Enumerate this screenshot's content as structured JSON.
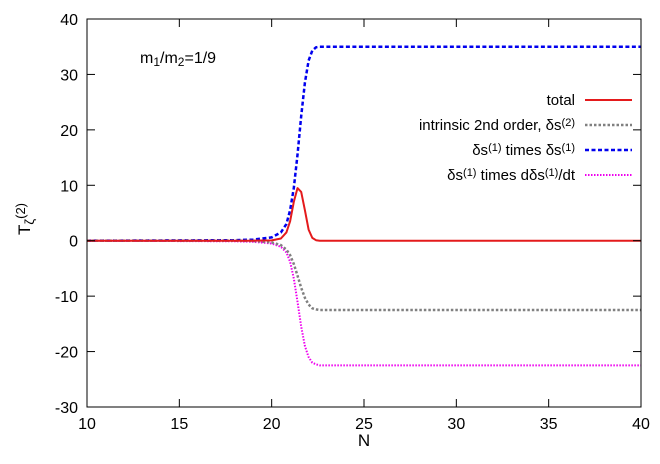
{
  "chart_data": {
    "type": "line",
    "annotation": {
      "parts": [
        {
          "t": "m",
          "s": "normal"
        },
        {
          "t": "1",
          "s": "sub"
        },
        {
          "t": "/m",
          "s": "normal"
        },
        {
          "t": "2",
          "s": "sub"
        },
        {
          "t": "=1/9",
          "s": "normal"
        }
      ]
    },
    "xlabel": "N",
    "ylabel": {
      "parts": [
        {
          "t": "T",
          "s": "normal"
        },
        {
          "t": "ζ",
          "s": "sub"
        },
        {
          "t": "(2)",
          "s": "sup"
        }
      ]
    },
    "xlim": [
      10,
      40
    ],
    "ylim": [
      -30,
      40
    ],
    "xticks": [
      10,
      15,
      20,
      25,
      30,
      35,
      40
    ],
    "yticks": [
      -30,
      -20,
      -10,
      0,
      10,
      20,
      30,
      40
    ],
    "grid": false,
    "legend_position": "top-right",
    "x": [
      10,
      18,
      19,
      20,
      20.5,
      20.8,
      21,
      21.2,
      21.4,
      21.6,
      21.8,
      22,
      22.2,
      22.4,
      22.6,
      23,
      25,
      30,
      35,
      40
    ],
    "series": [
      {
        "name": "total",
        "label_parts": [
          {
            "t": "total",
            "s": "normal"
          }
        ],
        "color": "#e41a1c",
        "dash": "solid",
        "values": [
          0,
          0,
          0,
          0.05,
          0.4,
          1.5,
          3.5,
          7,
          9.5,
          8.8,
          5.5,
          2,
          0.5,
          0.1,
          0,
          0,
          0,
          0,
          0,
          0
        ]
      },
      {
        "name": "intrinsic 2nd order, δs(2)",
        "label_parts": [
          {
            "t": "intrinsic 2nd order, δs",
            "s": "normal"
          },
          {
            "t": "(2)",
            "s": "sup"
          }
        ],
        "color": "#808080",
        "dash": "gray-dot",
        "values": [
          0,
          0,
          -0.05,
          -0.3,
          -0.8,
          -1.6,
          -2.6,
          -4.2,
          -6.3,
          -8.5,
          -10.3,
          -11.5,
          -12.2,
          -12.4,
          -12.5,
          -12.5,
          -12.5,
          -12.5,
          -12.5,
          -12.5
        ]
      },
      {
        "name": "δs(1) times δs(1)",
        "label_parts": [
          {
            "t": "δs",
            "s": "normal"
          },
          {
            "t": "(1)",
            "s": "sup"
          },
          {
            "t": " times δs",
            "s": "normal"
          },
          {
            "t": "(1)",
            "s": "sup"
          }
        ],
        "color": "#0000ee",
        "dash": "blue-dash",
        "values": [
          0,
          0.1,
          0.2,
          0.6,
          1.5,
          3,
          5.5,
          9.5,
          15.5,
          22.5,
          28.5,
          32.5,
          34.3,
          34.9,
          35,
          35,
          35,
          35,
          35,
          35
        ]
      },
      {
        "name": "δs(1) times dδs(1)/dt",
        "label_parts": [
          {
            "t": "δs",
            "s": "normal"
          },
          {
            "t": "(1)",
            "s": "sup"
          },
          {
            "t": " times dδs",
            "s": "normal"
          },
          {
            "t": "(1)",
            "s": "sup"
          },
          {
            "t": "/dt",
            "s": "normal"
          }
        ],
        "color": "#ee00ee",
        "dash": "magenta-dot",
        "values": [
          0,
          -0.1,
          -0.2,
          -0.5,
          -1.1,
          -2.1,
          -3.8,
          -6.8,
          -11,
          -15.5,
          -19,
          -21,
          -22,
          -22.3,
          -22.5,
          -22.5,
          -22.5,
          -22.5,
          -22.5,
          -22.5
        ]
      }
    ]
  }
}
